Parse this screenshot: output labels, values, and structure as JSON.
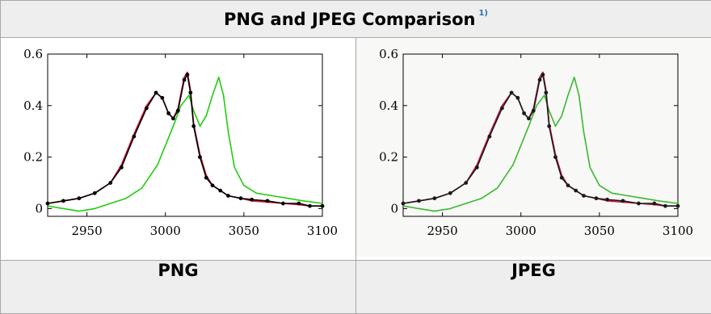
{
  "table": {
    "title": "PNG and JPEG Comparison",
    "footnote_ref": "1)",
    "columns": [
      {
        "label": "PNG",
        "format": "png"
      },
      {
        "label": "JPEG",
        "format": "jpeg"
      }
    ]
  },
  "chart_data": [
    {
      "type": "line",
      "panel": "PNG",
      "xlim": [
        2925,
        3100
      ],
      "ylim": [
        -0.03,
        0.6
      ],
      "xticks": [
        "2950",
        "3000",
        "3050",
        "3100"
      ],
      "yticks": [
        "0",
        "0.2",
        "0.4",
        "0.6"
      ],
      "grid": false,
      "colors": {
        "black": "#000000",
        "red": "#e0103a",
        "green": "#22cc11"
      },
      "series": [
        {
          "color": "black",
          "markers": true,
          "x": [
            2925,
            2935,
            2945,
            2955,
            2965,
            2972,
            2980,
            2988,
            2994,
            2998,
            3002,
            3005,
            3008,
            3012,
            3014,
            3016,
            3018,
            3022,
            3026,
            3030,
            3035,
            3040,
            3048,
            3055,
            3065,
            3075,
            3085,
            3092,
            3100
          ],
          "y": [
            0.02,
            0.03,
            0.04,
            0.06,
            0.1,
            0.16,
            0.28,
            0.39,
            0.45,
            0.43,
            0.37,
            0.35,
            0.38,
            0.5,
            0.52,
            0.45,
            0.32,
            0.2,
            0.12,
            0.09,
            0.07,
            0.05,
            0.04,
            0.035,
            0.03,
            0.02,
            0.02,
            0.01,
            0.01
          ]
        },
        {
          "color": "red",
          "markers": false,
          "x": [
            2925,
            2935,
            2945,
            2955,
            2965,
            2972,
            2980,
            2988,
            2994,
            2998,
            3002,
            3005,
            3008,
            3012,
            3014,
            3016,
            3018,
            3022,
            3026,
            3030,
            3035,
            3040,
            3048,
            3055,
            3065,
            3075,
            3085,
            3092,
            3100
          ],
          "y": [
            0.02,
            0.03,
            0.04,
            0.06,
            0.1,
            0.17,
            0.29,
            0.4,
            0.45,
            0.43,
            0.37,
            0.35,
            0.39,
            0.51,
            0.53,
            0.46,
            0.33,
            0.21,
            0.13,
            0.09,
            0.07,
            0.05,
            0.04,
            0.03,
            0.025,
            0.02,
            0.015,
            0.01,
            0.01
          ]
        },
        {
          "color": "green",
          "markers": false,
          "x": [
            2925,
            2935,
            2945,
            2955,
            2965,
            2975,
            2985,
            2995,
            3005,
            3010,
            3015,
            3018,
            3022,
            3026,
            3030,
            3034,
            3037,
            3040,
            3044,
            3050,
            3058,
            3068,
            3078,
            3088,
            3100
          ],
          "y": [
            0.01,
            0.0,
            -0.01,
            0.0,
            0.02,
            0.04,
            0.08,
            0.17,
            0.32,
            0.4,
            0.44,
            0.38,
            0.32,
            0.36,
            0.44,
            0.51,
            0.44,
            0.3,
            0.16,
            0.09,
            0.06,
            0.05,
            0.04,
            0.03,
            0.02
          ]
        }
      ]
    },
    {
      "type": "line",
      "panel": "JPEG",
      "xlim": [
        2925,
        3100
      ],
      "ylim": [
        -0.03,
        0.6
      ],
      "xticks": [
        "2950",
        "3000",
        "3050",
        "3100"
      ],
      "yticks": [
        "0",
        "0.2",
        "0.4",
        "0.6"
      ],
      "grid": false,
      "colors": {
        "black": "#1a1a1a",
        "red": "#d81640",
        "green": "#3bb82e"
      },
      "series": [
        {
          "color": "black",
          "markers": true,
          "x": [
            2925,
            2935,
            2945,
            2955,
            2965,
            2972,
            2980,
            2988,
            2994,
            2998,
            3002,
            3005,
            3008,
            3012,
            3014,
            3016,
            3018,
            3022,
            3026,
            3030,
            3035,
            3040,
            3048,
            3055,
            3065,
            3075,
            3085,
            3092,
            3100
          ],
          "y": [
            0.02,
            0.03,
            0.04,
            0.06,
            0.1,
            0.16,
            0.28,
            0.39,
            0.45,
            0.43,
            0.37,
            0.35,
            0.38,
            0.5,
            0.52,
            0.45,
            0.32,
            0.2,
            0.12,
            0.09,
            0.07,
            0.05,
            0.04,
            0.035,
            0.03,
            0.02,
            0.02,
            0.01,
            0.01
          ]
        },
        {
          "color": "red",
          "markers": false,
          "x": [
            2925,
            2935,
            2945,
            2955,
            2965,
            2972,
            2980,
            2988,
            2994,
            2998,
            3002,
            3005,
            3008,
            3012,
            3014,
            3016,
            3018,
            3022,
            3026,
            3030,
            3035,
            3040,
            3048,
            3055,
            3065,
            3075,
            3085,
            3092,
            3100
          ],
          "y": [
            0.02,
            0.03,
            0.04,
            0.06,
            0.1,
            0.17,
            0.29,
            0.4,
            0.45,
            0.43,
            0.37,
            0.35,
            0.39,
            0.51,
            0.53,
            0.46,
            0.33,
            0.21,
            0.13,
            0.09,
            0.07,
            0.05,
            0.04,
            0.03,
            0.025,
            0.02,
            0.015,
            0.01,
            0.01
          ]
        },
        {
          "color": "green",
          "markers": false,
          "x": [
            2925,
            2935,
            2945,
            2955,
            2965,
            2975,
            2985,
            2995,
            3005,
            3010,
            3015,
            3018,
            3022,
            3026,
            3030,
            3034,
            3037,
            3040,
            3044,
            3050,
            3058,
            3068,
            3078,
            3088,
            3100
          ],
          "y": [
            0.01,
            0.0,
            -0.01,
            0.0,
            0.02,
            0.04,
            0.08,
            0.17,
            0.32,
            0.4,
            0.44,
            0.38,
            0.32,
            0.36,
            0.44,
            0.51,
            0.44,
            0.3,
            0.16,
            0.09,
            0.06,
            0.05,
            0.04,
            0.03,
            0.02
          ]
        }
      ]
    }
  ]
}
